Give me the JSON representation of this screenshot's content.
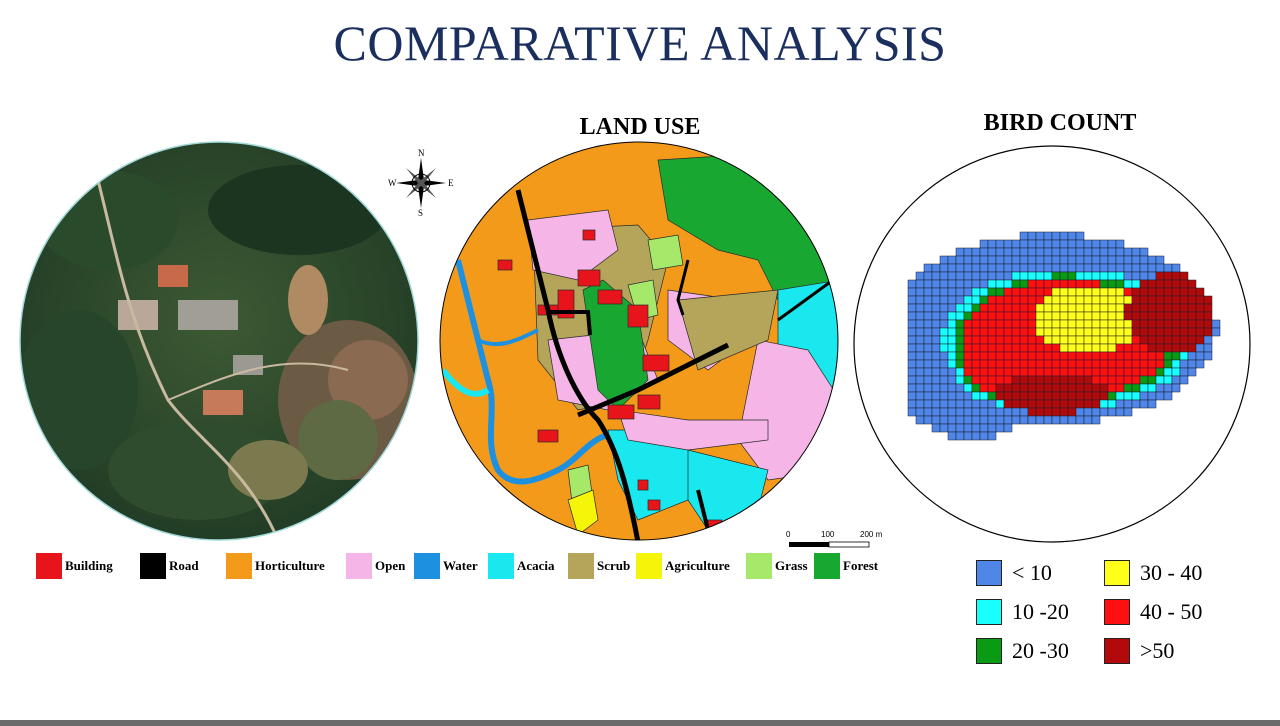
{
  "title": "COMPARATIVE ANALYSIS",
  "land_use": {
    "title": "LAND USE",
    "legend": [
      {
        "label": "Building",
        "color": "#e8141b"
      },
      {
        "label": "Road",
        "color": "#000000"
      },
      {
        "label": "Horticulture",
        "color": "#f39a1a"
      },
      {
        "label": "Open",
        "color": "#f5b5e6"
      },
      {
        "label": "Water",
        "color": "#1e90e0"
      },
      {
        "label": "Acacia",
        "color": "#19e8ef"
      },
      {
        "label": "Scrub",
        "color": "#b5a55b"
      },
      {
        "label": "Agriculture",
        "color": "#f5f50a"
      },
      {
        "label": "Grass",
        "color": "#a6e86a"
      },
      {
        "label": "Forest",
        "color": "#18a832"
      }
    ],
    "scale": {
      "labels": [
        "0",
        "100",
        "200 m"
      ]
    },
    "compass": {
      "n": "N",
      "s": "S",
      "e": "E",
      "w": "W"
    }
  },
  "bird_count": {
    "title": "BIRD COUNT",
    "legend": [
      {
        "label": "< 10",
        "color": "#4f86e8"
      },
      {
        "label": "30 - 40",
        "color": "#ffff19"
      },
      {
        "label": "10 -20",
        "color": "#19ffff"
      },
      {
        "label": "40 - 50",
        "color": "#ff1010"
      },
      {
        "label": "20 -30",
        "color": "#0a9a14"
      },
      {
        "label": ">50",
        "color": "#b20a0a"
      }
    ]
  }
}
